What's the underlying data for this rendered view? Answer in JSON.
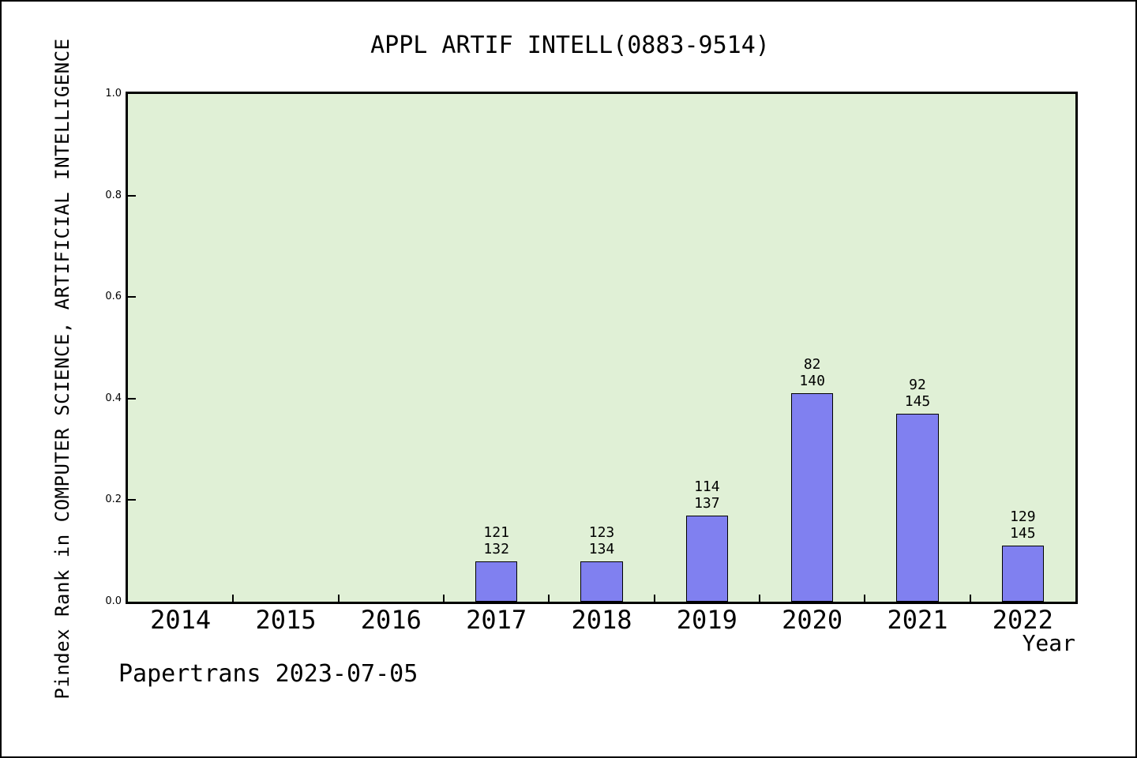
{
  "chart_data": {
    "type": "bar",
    "title": "APPL ARTIF INTELL(0883-9514)",
    "xlabel": "Year",
    "ylabel": "Pindex Rank in COMPUTER SCIENCE, ARTIFICIAL INTELLIGENCE",
    "watermark": "Papertrans 2023-07-05",
    "categories": [
      "2014",
      "2015",
      "2016",
      "2017",
      "2018",
      "2019",
      "2020",
      "2021",
      "2022"
    ],
    "values": [
      null,
      null,
      null,
      0.08,
      0.08,
      0.17,
      0.41,
      0.37,
      0.11
    ],
    "bars": [
      {
        "year": "2017",
        "rank": "121",
        "total": "132",
        "value": 0.08
      },
      {
        "year": "2018",
        "rank": "123",
        "total": "134",
        "value": 0.08
      },
      {
        "year": "2019",
        "rank": "114",
        "total": "137",
        "value": 0.17
      },
      {
        "year": "2020",
        "rank": "82",
        "total": "140",
        "value": 0.41
      },
      {
        "year": "2021",
        "rank": "92",
        "total": "145",
        "value": 0.37
      },
      {
        "year": "2022",
        "rank": "129",
        "total": "145",
        "value": 0.11
      }
    ],
    "bar_label_note": "two lines above each bar: rank over total; bar height = 1 - rank/total",
    "y_ticks": [
      {
        "label": "0.0",
        "value": 0.0
      },
      {
        "label": "0.2",
        "value": 0.2
      },
      {
        "label": "0.4",
        "value": 0.4
      },
      {
        "label": "0.6",
        "value": 0.6
      },
      {
        "label": "0.8",
        "value": 0.8
      },
      {
        "label": "1.0",
        "value": 1.0
      }
    ],
    "ylim": [
      0.0,
      1.0
    ],
    "grid": false,
    "legend": null,
    "colors": {
      "plot_background": "#e0f0d6",
      "bar_fill": "#8080f0",
      "bar_edge": "#000000",
      "text": "#000000",
      "page_background": "#ffffff"
    }
  }
}
